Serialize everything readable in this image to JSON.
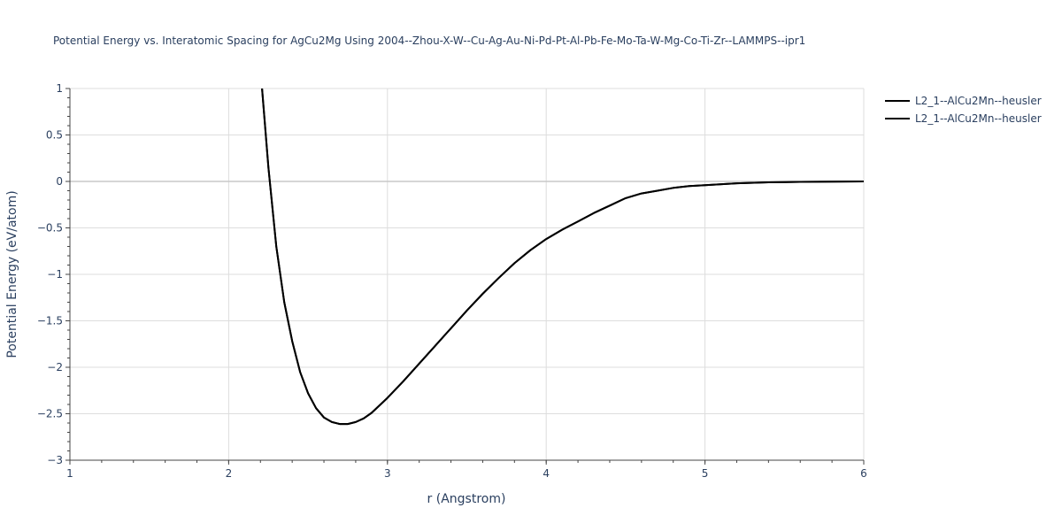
{
  "chart_data": {
    "type": "line",
    "title": "Potential Energy vs. Interatomic Spacing for AgCu2Mg Using 2004--Zhou-X-W--Cu-Ag-Au-Ni-Pd-Pt-Al-Pb-Fe-Mo-Ta-W-Mg-Co-Ti-Zr--LAMMPS--ipr1",
    "xlabel": "r (Angstrom)",
    "ylabel": "Potential Energy (eV/atom)",
    "xlim": [
      1,
      6
    ],
    "ylim": [
      -3,
      1
    ],
    "x_ticks": [
      1,
      2,
      3,
      4,
      5,
      6
    ],
    "x_tick_labels": [
      "1",
      "2",
      "3",
      "4",
      "5",
      "6"
    ],
    "y_ticks": [
      1,
      0.5,
      0,
      -0.5,
      -1,
      -1.5,
      -2,
      -2.5,
      -3
    ],
    "y_tick_labels": [
      "1",
      "0.5",
      "0",
      "−0.5",
      "−1",
      "−1.5",
      "−2",
      "−2.5",
      "−3"
    ],
    "grid": true,
    "legend_position": "top-right",
    "series": [
      {
        "name": "L2_1--AlCu2Mn--heusler",
        "color": "#000000",
        "x": [
          2.21,
          2.25,
          2.3,
          2.35,
          2.4,
          2.45,
          2.5,
          2.55,
          2.6,
          2.65,
          2.7,
          2.75,
          2.8,
          2.85,
          2.9,
          3.0,
          3.1,
          3.2,
          3.3,
          3.4,
          3.5,
          3.6,
          3.7,
          3.8,
          3.9,
          4.0,
          4.1,
          4.2,
          4.3,
          4.4,
          4.5,
          4.6,
          4.7,
          4.8,
          4.9,
          5.0,
          5.2,
          5.4,
          5.6,
          5.8,
          6.0
        ],
        "y": [
          1.0,
          0.15,
          -0.7,
          -1.3,
          -1.72,
          -2.05,
          -2.28,
          -2.44,
          -2.54,
          -2.59,
          -2.61,
          -2.61,
          -2.59,
          -2.55,
          -2.49,
          -2.33,
          -2.15,
          -1.96,
          -1.77,
          -1.58,
          -1.39,
          -1.21,
          -1.04,
          -0.88,
          -0.74,
          -0.62,
          -0.52,
          -0.43,
          -0.34,
          -0.26,
          -0.18,
          -0.13,
          -0.1,
          -0.07,
          -0.05,
          -0.04,
          -0.02,
          -0.01,
          -0.005,
          -0.002,
          0.0
        ]
      },
      {
        "name": "L2_1--AlCu2Mn--heusler",
        "color": "#000000",
        "x": [
          2.21,
          2.25,
          2.3,
          2.35,
          2.4,
          2.45,
          2.5,
          2.55,
          2.6,
          2.65,
          2.7,
          2.75,
          2.8,
          2.85,
          2.9,
          3.0,
          3.1,
          3.2,
          3.3,
          3.4,
          3.5,
          3.6,
          3.7,
          3.8,
          3.9,
          4.0,
          4.1,
          4.2,
          4.3,
          4.4,
          4.5,
          4.6,
          4.7,
          4.8,
          4.9,
          5.0,
          5.2,
          5.4,
          5.6,
          5.8,
          6.0
        ],
        "y": [
          1.0,
          0.15,
          -0.7,
          -1.3,
          -1.72,
          -2.05,
          -2.28,
          -2.44,
          -2.54,
          -2.59,
          -2.61,
          -2.61,
          -2.59,
          -2.55,
          -2.49,
          -2.33,
          -2.15,
          -1.96,
          -1.77,
          -1.58,
          -1.39,
          -1.21,
          -1.04,
          -0.88,
          -0.74,
          -0.62,
          -0.52,
          -0.43,
          -0.34,
          -0.26,
          -0.18,
          -0.13,
          -0.1,
          -0.07,
          -0.05,
          -0.04,
          -0.02,
          -0.01,
          -0.005,
          -0.002,
          0.0
        ]
      }
    ]
  }
}
